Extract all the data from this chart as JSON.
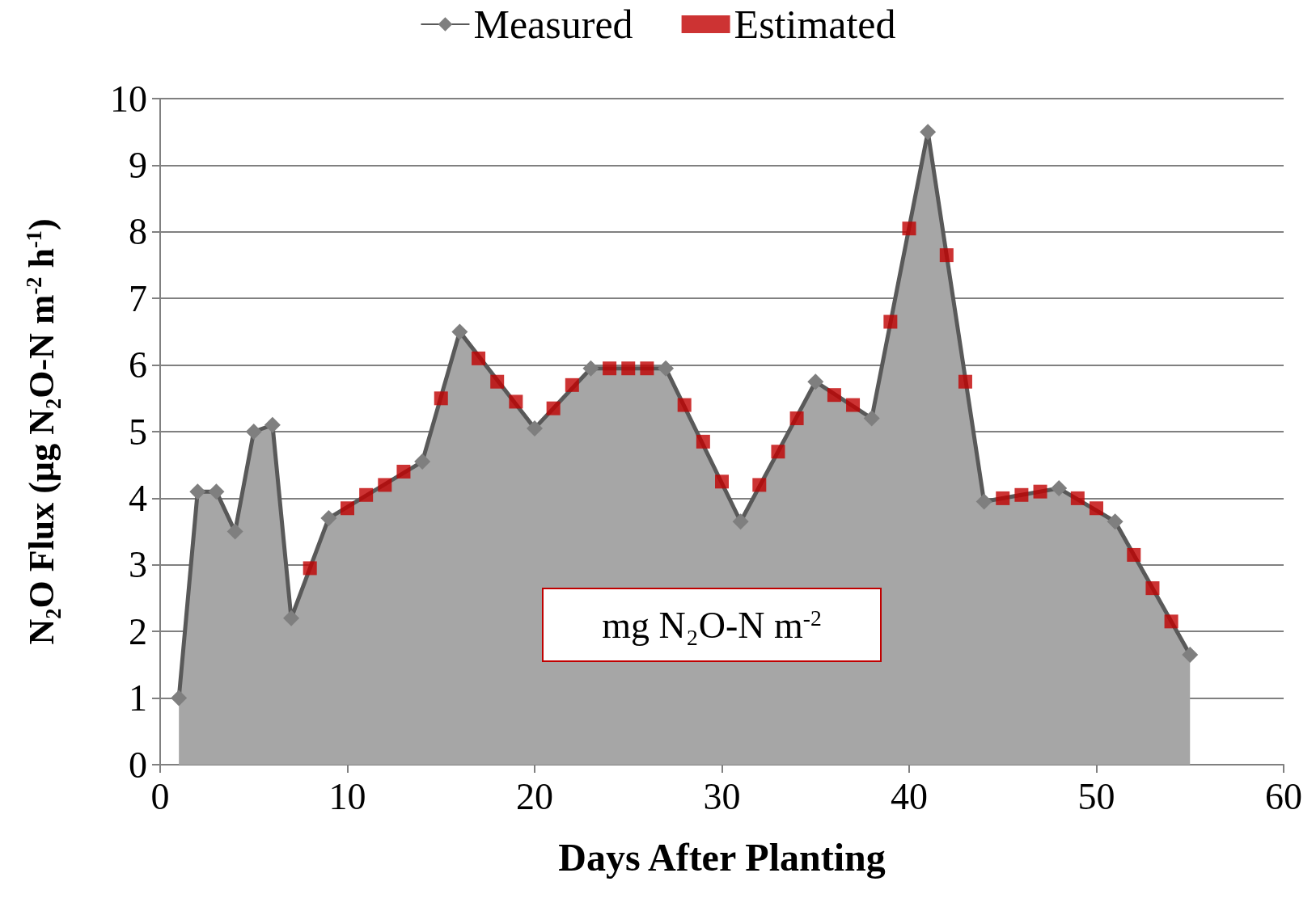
{
  "chart_data": {
    "type": "area",
    "xlabel": "Days After Planting",
    "ylabel": "N₂O Flux (µg N₂O-N m$^{-2}$ h$^{-1}$)",
    "annotations": [
      "mg N₂O-N m$^{-2}$"
    ],
    "xlim": [
      0,
      60
    ],
    "xticks": [
      0,
      10,
      20,
      30,
      40,
      50,
      60
    ],
    "ylim": [
      0,
      10
    ],
    "yticks": [
      0,
      1,
      2,
      3,
      4,
      5,
      6,
      7,
      8,
      9,
      10
    ],
    "grid": "y",
    "legend": "top",
    "series": [
      {
        "name": "Measured",
        "type": "area",
        "color": "#7f7f7f",
        "marker": "diamond",
        "x": [
          1,
          2,
          3,
          4,
          5,
          6,
          7,
          9,
          14,
          16,
          20,
          23,
          27,
          31,
          35,
          38,
          41,
          44,
          48,
          51,
          55
        ],
        "values": [
          1.0,
          4.1,
          4.1,
          3.5,
          5.0,
          5.1,
          2.2,
          3.7,
          4.55,
          6.5,
          5.05,
          5.95,
          5.95,
          3.65,
          5.75,
          5.2,
          9.5,
          3.95,
          4.15,
          3.65,
          1.65
        ]
      },
      {
        "name": "Estimated",
        "type": "scatter",
        "color": "#c00000",
        "marker": "square",
        "x": [
          8,
          10,
          11,
          12,
          13,
          15,
          17,
          18,
          19,
          21,
          22,
          24,
          25,
          26,
          28,
          29,
          30,
          32,
          33,
          34,
          36,
          37,
          39,
          40,
          42,
          43,
          45,
          46,
          47,
          49,
          50,
          52,
          53,
          54
        ],
        "values": [
          2.95,
          3.85,
          4.05,
          4.2,
          4.4,
          5.5,
          6.1,
          5.75,
          5.45,
          5.35,
          5.7,
          5.95,
          5.95,
          5.95,
          5.4,
          4.85,
          4.25,
          4.2,
          4.7,
          5.2,
          5.55,
          5.4,
          6.65,
          8.05,
          7.65,
          5.75,
          4.0,
          4.05,
          4.1,
          4.0,
          3.85,
          3.15,
          2.65,
          2.15
        ]
      }
    ]
  }
}
